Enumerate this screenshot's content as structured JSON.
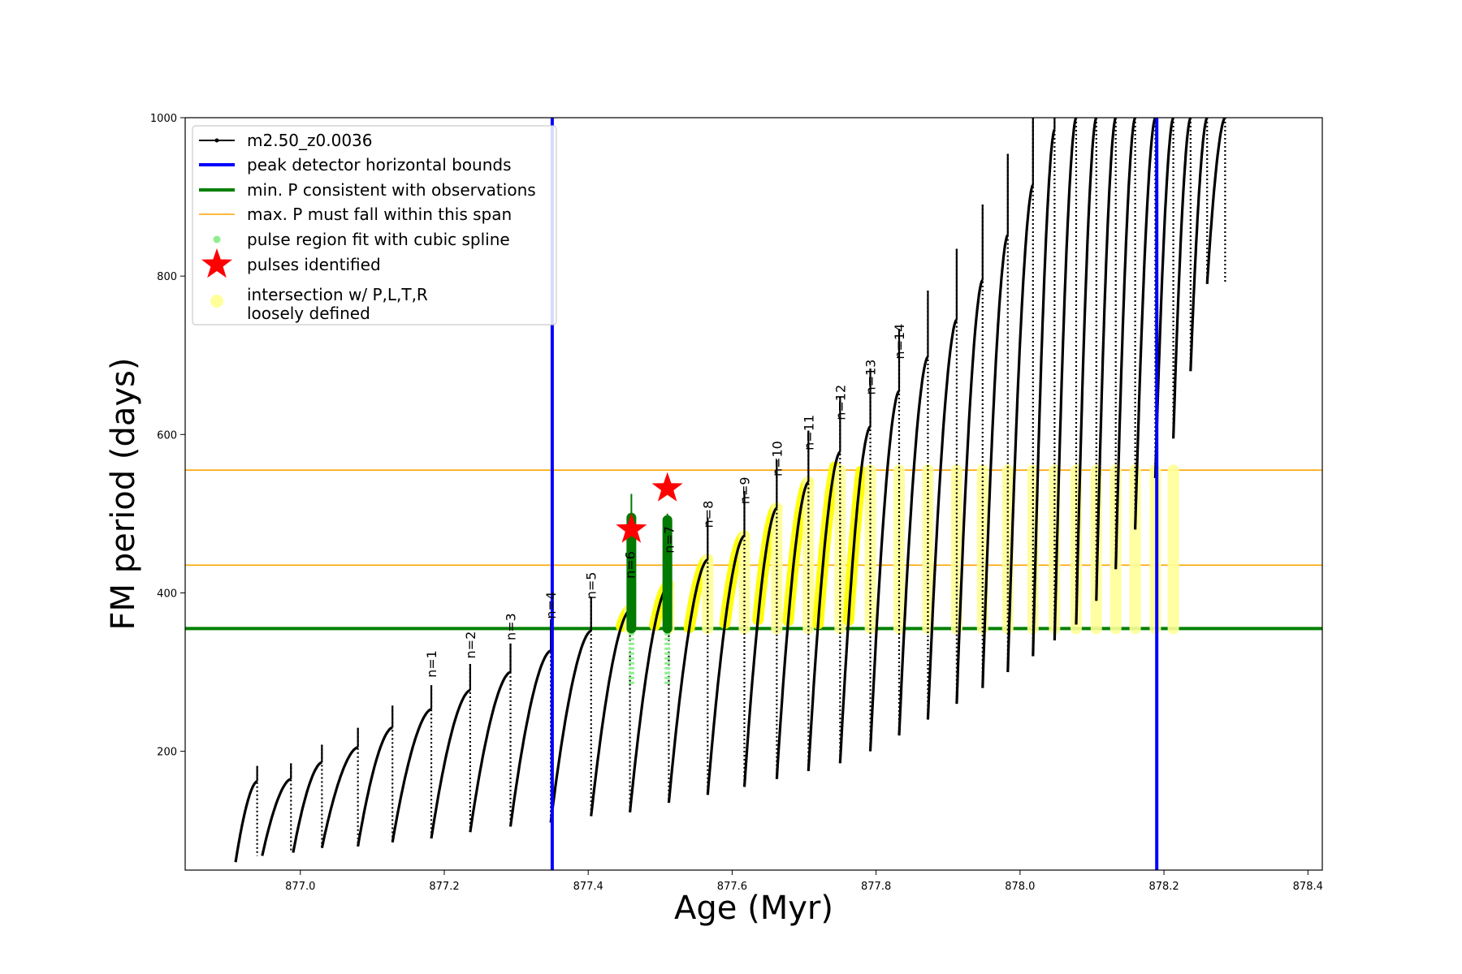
{
  "chart_data": {
    "type": "line",
    "xlabel": "Age (Myr)",
    "ylabel": "FM period (days)",
    "xlim": [
      876.84,
      878.42
    ],
    "ylim": [
      50,
      1000
    ],
    "xticks": [
      877.0,
      877.2,
      877.4,
      877.6,
      877.8,
      878.0,
      878.2,
      878.4
    ],
    "xtick_labels": [
      "877.0",
      "877.2",
      "877.4",
      "877.6",
      "877.8",
      "878.0",
      "878.2",
      "878.4"
    ],
    "yticks": [
      200,
      400,
      600,
      800,
      1000
    ],
    "ytick_labels": [
      "200",
      "400",
      "600",
      "800",
      "1000"
    ],
    "grid": false,
    "legend_position": "top-left",
    "legend": [
      {
        "label": "m2.50_z0.0036",
        "marker": "line-dot",
        "color": "#000000"
      },
      {
        "label": "peak detector horizontal bounds",
        "marker": "line",
        "color": "#0000ff"
      },
      {
        "label": "min. P consistent with observations",
        "marker": "line",
        "color": "#008000"
      },
      {
        "label": "max. P must fall within this span",
        "marker": "thin-line",
        "color": "#ffa500"
      },
      {
        "label": "pulse region fit with cubic spline",
        "marker": "dot",
        "color": "#90ee90"
      },
      {
        "label": "pulses identified",
        "marker": "star",
        "color": "#ff0000"
      },
      {
        "label": "intersection w/ P,L,T,R",
        "label2": "loosely defined",
        "marker": "circle",
        "color": "#ffff99"
      }
    ],
    "colors": {
      "series": "#000000",
      "bounds": "#0000ff",
      "min_p": "#008000",
      "max_span": "#ffa500",
      "spline": "#90ee90",
      "spline_dark": "#007a00",
      "stars": "#ff0000",
      "intersection": "#ffff00",
      "intersection_loose": "#ffff99"
    },
    "vertical_bounds": [
      877.35,
      878.19
    ],
    "min_period": 355,
    "max_span": [
      435,
      555
    ],
    "pulses_identified": [
      {
        "x": 877.46,
        "y": 480
      },
      {
        "x": 877.51,
        "y": 532
      }
    ],
    "pulses": [
      {
        "n": null,
        "start": 876.91,
        "end": 876.94,
        "min": 60,
        "max": 162
      },
      {
        "n": null,
        "start": 876.947,
        "end": 876.987,
        "min": 68,
        "max": 165
      },
      {
        "n": null,
        "start": 876.99,
        "end": 877.03,
        "min": 72,
        "max": 186
      },
      {
        "n": null,
        "start": 877.03,
        "end": 877.08,
        "min": 78,
        "max": 205
      },
      {
        "n": null,
        "start": 877.08,
        "end": 877.128,
        "min": 80,
        "max": 230
      },
      {
        "n": "n=1",
        "start": 877.128,
        "end": 877.182,
        "min": 85,
        "max": 253
      },
      {
        "n": "n=2",
        "start": 877.182,
        "end": 877.236,
        "min": 90,
        "max": 277
      },
      {
        "n": "n=3",
        "start": 877.236,
        "end": 877.292,
        "min": 98,
        "max": 300
      },
      {
        "n": "n=4",
        "start": 877.292,
        "end": 877.348,
        "min": 105,
        "max": 327
      },
      {
        "n": "n=5",
        "start": 877.348,
        "end": 877.404,
        "min": 110,
        "max": 352
      },
      {
        "n": "n=6",
        "start": 877.404,
        "end": 877.458,
        "min": 118,
        "max": 378
      },
      {
        "n": "n=7",
        "start": 877.458,
        "end": 877.512,
        "min": 123,
        "max": 410
      },
      {
        "n": "n=8",
        "start": 877.512,
        "end": 877.566,
        "min": 135,
        "max": 442
      },
      {
        "n": "n=9",
        "start": 877.566,
        "end": 877.617,
        "min": 145,
        "max": 472
      },
      {
        "n": "n=10",
        "start": 877.617,
        "end": 877.662,
        "min": 155,
        "max": 507
      },
      {
        "n": "n=11",
        "start": 877.662,
        "end": 877.706,
        "min": 165,
        "max": 540
      },
      {
        "n": "n=12",
        "start": 877.706,
        "end": 877.75,
        "min": 175,
        "max": 578
      },
      {
        "n": "n=13",
        "start": 877.75,
        "end": 877.792,
        "min": 185,
        "max": 610
      },
      {
        "n": "n=14",
        "start": 877.792,
        "end": 877.832,
        "min": 200,
        "max": 655
      },
      {
        "n": null,
        "start": 877.832,
        "end": 877.872,
        "min": 220,
        "max": 698
      },
      {
        "n": null,
        "start": 877.872,
        "end": 877.912,
        "min": 240,
        "max": 745
      },
      {
        "n": null,
        "start": 877.912,
        "end": 877.948,
        "min": 260,
        "max": 795
      },
      {
        "n": null,
        "start": 877.948,
        "end": 877.983,
        "min": 280,
        "max": 852
      },
      {
        "n": null,
        "start": 877.983,
        "end": 878.018,
        "min": 300,
        "max": 915
      },
      {
        "n": null,
        "start": 878.018,
        "end": 878.048,
        "min": 320,
        "max": 985
      },
      {
        "n": null,
        "start": 878.048,
        "end": 878.078,
        "min": 340,
        "max": 1000
      },
      {
        "n": null,
        "start": 878.078,
        "end": 878.106,
        "min": 360,
        "max": 1000
      },
      {
        "n": null,
        "start": 878.106,
        "end": 878.133,
        "min": 390,
        "max": 1000
      },
      {
        "n": null,
        "start": 878.133,
        "end": 878.16,
        "min": 430,
        "max": 1000
      },
      {
        "n": null,
        "start": 878.16,
        "end": 878.188,
        "min": 480,
        "max": 1000
      },
      {
        "n": null,
        "start": 878.188,
        "end": 878.213,
        "min": 545,
        "max": 1000
      },
      {
        "n": null,
        "start": 878.213,
        "end": 878.237,
        "min": 595,
        "max": 1000
      },
      {
        "n": null,
        "start": 878.237,
        "end": 878.26,
        "min": 680,
        "max": 1000
      },
      {
        "n": null,
        "start": 878.26,
        "end": 878.285,
        "min": 790,
        "max": 1000
      }
    ]
  }
}
